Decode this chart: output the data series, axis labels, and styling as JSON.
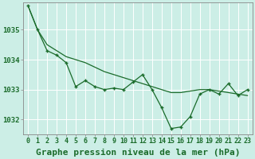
{
  "background_color": "#cceee6",
  "grid_color": "#ffffff",
  "line_color": "#1a6b2a",
  "title": "Graphe pression niveau de la mer (hPa)",
  "xlim": [
    -0.5,
    23.5
  ],
  "ylim": [
    1031.5,
    1035.9
  ],
  "yticks": [
    1032,
    1033,
    1034,
    1035
  ],
  "xticks": [
    0,
    1,
    2,
    3,
    4,
    5,
    6,
    7,
    8,
    9,
    10,
    11,
    12,
    13,
    14,
    15,
    16,
    17,
    18,
    19,
    20,
    21,
    22,
    23
  ],
  "series_jagged": [
    1035.8,
    1035.0,
    1034.3,
    1034.15,
    1033.9,
    1033.1,
    1033.3,
    1033.1,
    1033.0,
    1033.05,
    1033.0,
    1033.25,
    1033.5,
    1033.0,
    1032.4,
    1031.7,
    1031.75,
    1032.1,
    1032.85,
    1033.0,
    1032.85,
    1033.2,
    1032.8,
    1033.0
  ],
  "series_smooth": [
    1035.8,
    1035.0,
    1034.5,
    1034.3,
    1034.1,
    1034.0,
    1033.9,
    1033.75,
    1033.6,
    1033.5,
    1033.4,
    1033.3,
    1033.2,
    1033.1,
    1033.0,
    1032.9,
    1032.9,
    1032.95,
    1033.0,
    1033.0,
    1032.95,
    1032.9,
    1032.85,
    1032.8
  ],
  "title_fontsize": 8,
  "tick_fontsize": 6
}
